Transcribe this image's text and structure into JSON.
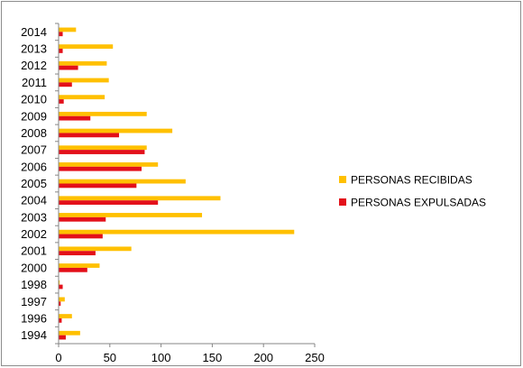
{
  "chart_data": {
    "type": "bar",
    "orientation": "horizontal",
    "categories": [
      "1994",
      "1996",
      "1997",
      "1998",
      "2000",
      "2001",
      "2002",
      "2003",
      "2004",
      "2005",
      "2006",
      "2007",
      "2008",
      "2009",
      "2010",
      "2011",
      "2012",
      "2013",
      "2014"
    ],
    "series": [
      {
        "name": "PERSONAS RECIBIDAS",
        "color": "#FFC000",
        "values": [
          21,
          13,
          6,
          1,
          40,
          71,
          230,
          140,
          158,
          124,
          97,
          86,
          111,
          86,
          45,
          49,
          47,
          53,
          17
        ]
      },
      {
        "name": "PERSONAS EXPULSADAS",
        "color": "#E3101A",
        "values": [
          7,
          3,
          2,
          4,
          28,
          36,
          43,
          46,
          97,
          76,
          81,
          84,
          59,
          31,
          5,
          13,
          19,
          4,
          4
        ]
      }
    ],
    "xlim": [
      0,
      250
    ],
    "xticks": [
      "0",
      "50",
      "100",
      "150",
      "200",
      "250"
    ],
    "grid": false,
    "legend_position": "right"
  }
}
